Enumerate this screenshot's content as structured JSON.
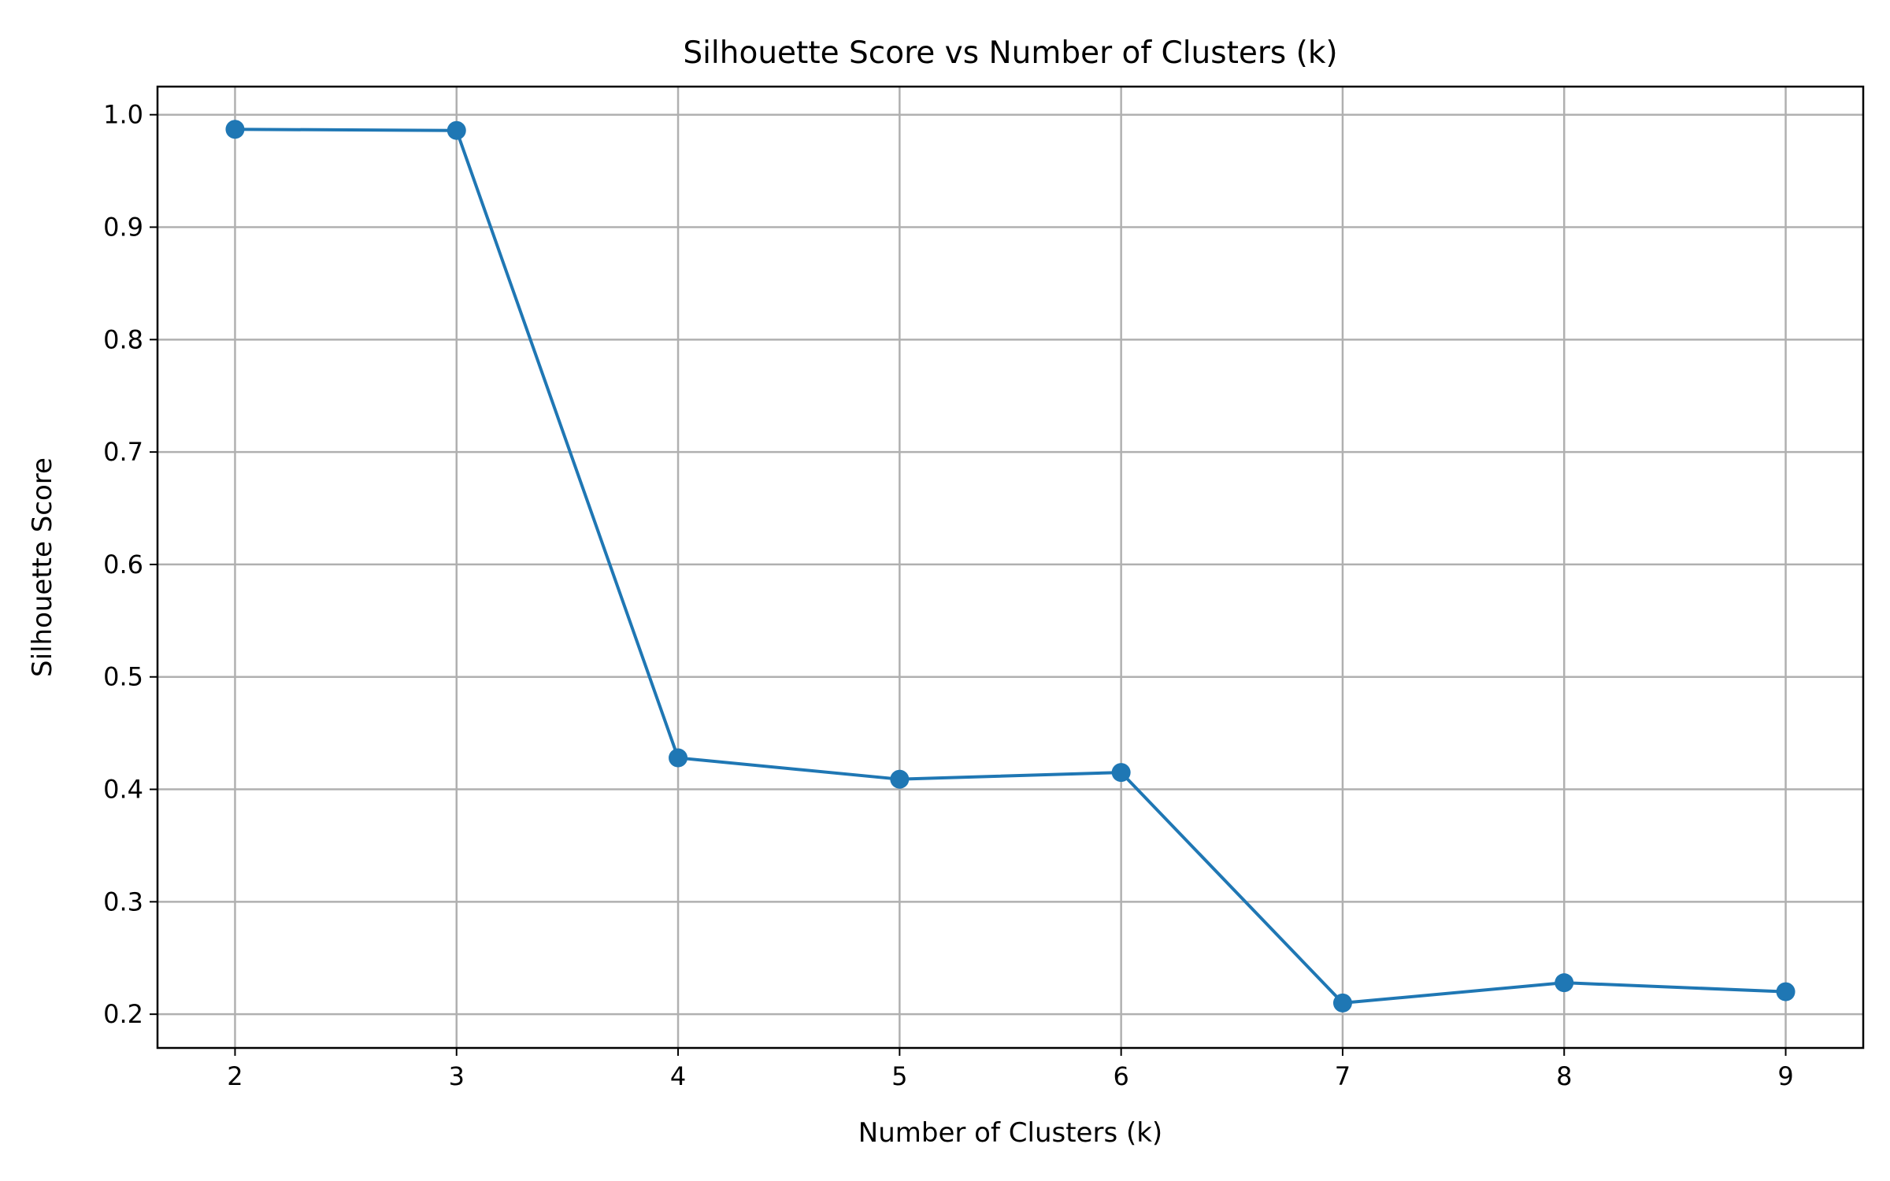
{
  "chart_data": {
    "type": "line",
    "title": "Silhouette Score vs Number of Clusters (k)",
    "xlabel": "Number of Clusters (k)",
    "ylabel": "Silhouette Score",
    "x": [
      2,
      3,
      4,
      5,
      6,
      7,
      8,
      9
    ],
    "x_tick_labels": [
      "2",
      "3",
      "4",
      "5",
      "6",
      "7",
      "8",
      "9"
    ],
    "y_ticks": [
      0.2,
      0.3,
      0.4,
      0.5,
      0.6,
      0.7,
      0.8,
      0.9,
      1.0
    ],
    "y_tick_labels": [
      "0.2",
      "0.3",
      "0.4",
      "0.5",
      "0.6",
      "0.7",
      "0.8",
      "0.9",
      "1.0"
    ],
    "xlim": [
      1.65,
      9.35
    ],
    "ylim": [
      0.17,
      1.025
    ],
    "grid": true,
    "legend": "none",
    "marker": "circle",
    "series": [
      {
        "values": [
          0.987,
          0.986,
          0.428,
          0.409,
          0.415,
          0.21,
          0.228,
          0.22
        ],
        "color": "#1f77b4"
      }
    ]
  }
}
